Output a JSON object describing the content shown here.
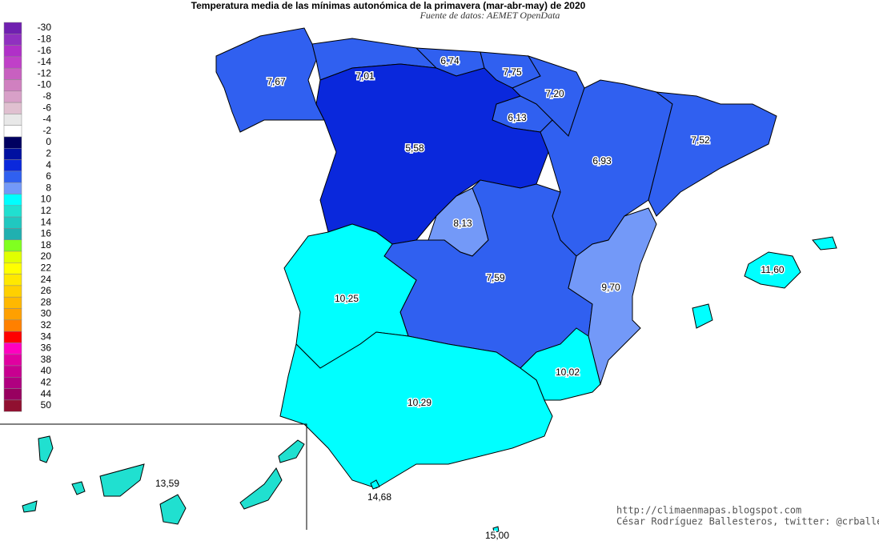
{
  "header": {
    "title": "Temperatura media de las mínimas autonómica de la primavera (mar-abr-may) de 2020",
    "source": "Fuente de datos: AEMET OpenData"
  },
  "legend": {
    "items": [
      {
        "label": "-30",
        "color": "#7020b0"
      },
      {
        "label": "-18",
        "color": "#9030c0"
      },
      {
        "label": "-16",
        "color": "#b030c8"
      },
      {
        "label": "-14",
        "color": "#c040c8"
      },
      {
        "label": "-12",
        "color": "#c860c0"
      },
      {
        "label": "-10",
        "color": "#d080c0"
      },
      {
        "label": "-8",
        "color": "#d8a0c8"
      },
      {
        "label": "-6",
        "color": "#e0c0d0"
      },
      {
        "label": "-4",
        "color": "#e8e8e8"
      },
      {
        "label": "-2",
        "color": "#ffffff"
      },
      {
        "label": "0",
        "color": "#000060"
      },
      {
        "label": "2",
        "color": "#0010a0"
      },
      {
        "label": "4",
        "color": "#0a28dc"
      },
      {
        "label": "6",
        "color": "#3060f0"
      },
      {
        "label": "8",
        "color": "#7399f8"
      },
      {
        "label": "10",
        "color": "#00ffff"
      },
      {
        "label": "12",
        "color": "#20e0d0"
      },
      {
        "label": "14",
        "color": "#20c8c0"
      },
      {
        "label": "16",
        "color": "#20b0b0"
      },
      {
        "label": "18",
        "color": "#80ff20"
      },
      {
        "label": "20",
        "color": "#e0ff00"
      },
      {
        "label": "22",
        "color": "#ffff00"
      },
      {
        "label": "24",
        "color": "#ffe800"
      },
      {
        "label": "26",
        "color": "#ffd000"
      },
      {
        "label": "28",
        "color": "#ffb800"
      },
      {
        "label": "30",
        "color": "#ffa000"
      },
      {
        "label": "32",
        "color": "#ff8000"
      },
      {
        "label": "34",
        "color": "#ff0000"
      },
      {
        "label": "36",
        "color": "#ff00c0"
      },
      {
        "label": "38",
        "color": "#e000a0"
      },
      {
        "label": "40",
        "color": "#c80090"
      },
      {
        "label": "42",
        "color": "#b00080"
      },
      {
        "label": "44",
        "color": "#980060"
      },
      {
        "label": "50",
        "color": "#901030"
      }
    ]
  },
  "regions": [
    "7,67",
    "7,01",
    "6,74",
    "7,75",
    "7,20",
    "6,13",
    "5,58",
    "6,93",
    "7,52",
    "8,13",
    "7,59",
    "10,25",
    "9,70",
    "11,60",
    "10,02",
    "10,29",
    "13,59",
    "14,68",
    "15,00"
  ],
  "credits": [
    "http://climaenmapas.blogspot.com",
    "César Rodríguez Ballesteros, twitter: @crballesteros"
  ]
}
